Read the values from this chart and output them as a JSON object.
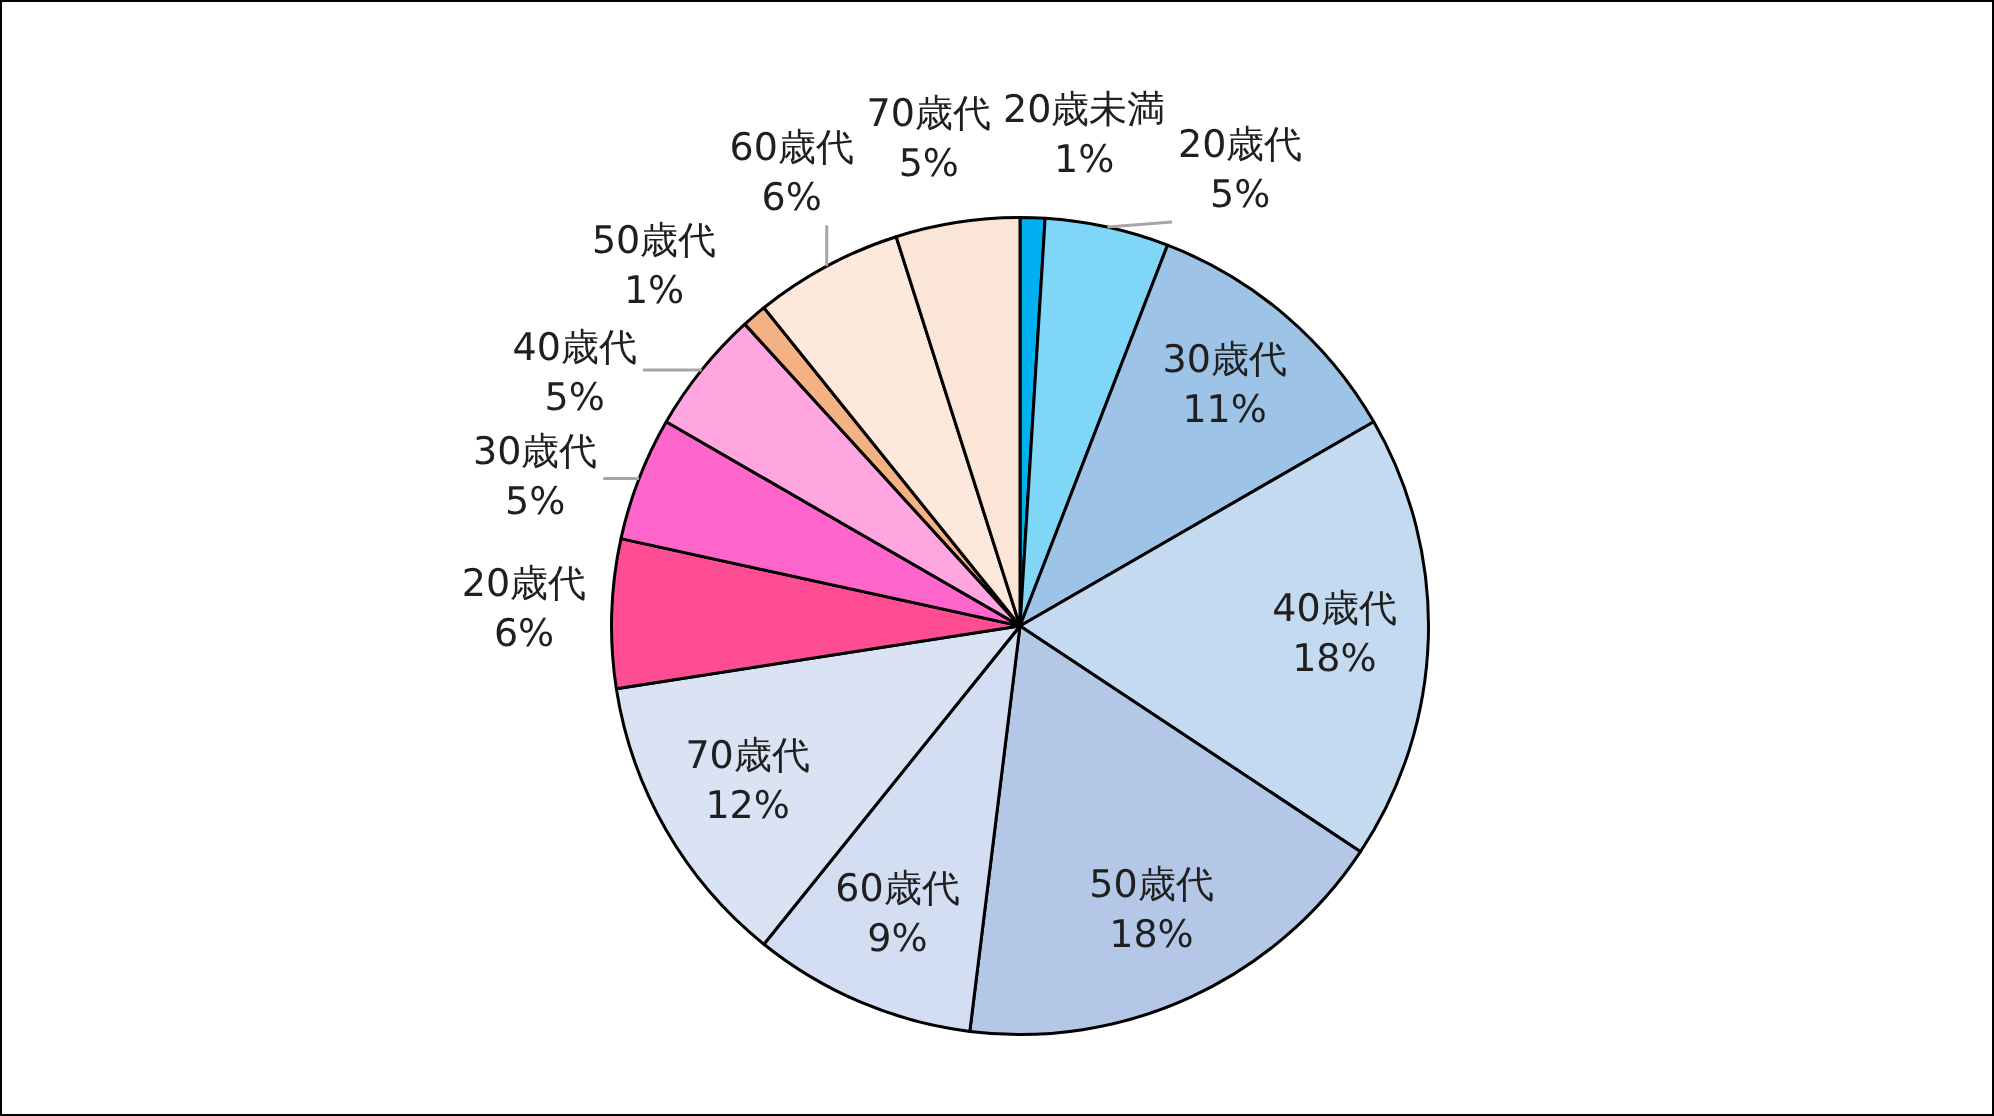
{
  "chart_data": {
    "type": "pie",
    "categories": [
      "20歳未満",
      "20歳代",
      "30歳代",
      "40歳代",
      "50歳代",
      "60歳代",
      "70歳代",
      "20歳代",
      "30歳代",
      "40歳代",
      "50歳代",
      "60歳代",
      "70歳代"
    ],
    "values": [
      1,
      5,
      11,
      18,
      18,
      9,
      12,
      6,
      5,
      5,
      1,
      6,
      5
    ],
    "colors": [
      "#00b0f0",
      "#7fd6f7",
      "#9dc3e6",
      "#c4daf0",
      "#b4c7e7",
      "#d3def2",
      "#dae3f3",
      "#ff4d94",
      "#ff66cc",
      "#ffa6e0",
      "#f4b183",
      "#fce9dc",
      "#fbe5d6"
    ],
    "value_labels": [
      "1%",
      "5%",
      "11%",
      "18%",
      "18%",
      "9%",
      "12%",
      "6%",
      "5%",
      "5%",
      "1%",
      "6%",
      "5%"
    ],
    "legend": false
  }
}
